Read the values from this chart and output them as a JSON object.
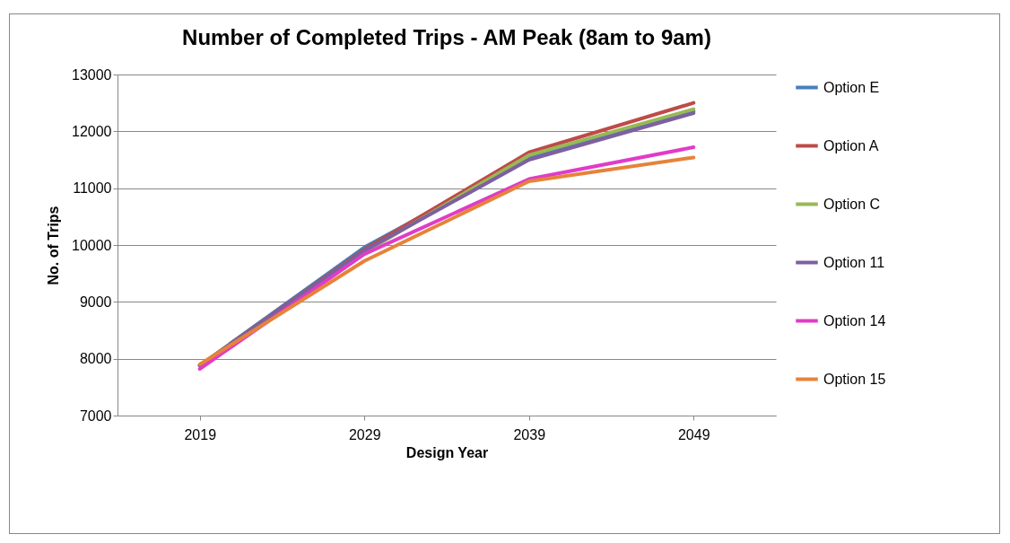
{
  "chart_data": {
    "type": "line",
    "title": "Number of Completed Trips - AM Peak (8am to 9am)",
    "xlabel": "Design Year",
    "ylabel": "No. of Trips",
    "categories": [
      "2019",
      "2029",
      "2039",
      "2049"
    ],
    "series": [
      {
        "name": "Option E",
        "color": "#4a7ebb",
        "values": [
          7880,
          9960,
          11530,
          12350
        ]
      },
      {
        "name": "Option A",
        "color": "#be4b48",
        "values": [
          7880,
          9920,
          11630,
          12500
        ]
      },
      {
        "name": "Option C",
        "color": "#98b954",
        "values": [
          7880,
          9870,
          11580,
          12390
        ]
      },
      {
        "name": "Option 11",
        "color": "#7d60a0",
        "values": [
          7880,
          9900,
          11500,
          12320
        ]
      },
      {
        "name": "Option 14",
        "color": "#e03cc8",
        "values": [
          7820,
          9840,
          11160,
          11720
        ]
      },
      {
        "name": "Option 15",
        "color": "#e6833a",
        "values": [
          7900,
          9720,
          11120,
          11540
        ]
      }
    ],
    "ylim": [
      7000,
      13000
    ],
    "yticks": [
      7000,
      8000,
      9000,
      10000,
      11000,
      12000,
      13000
    ],
    "grid": "y",
    "legend": "right"
  }
}
